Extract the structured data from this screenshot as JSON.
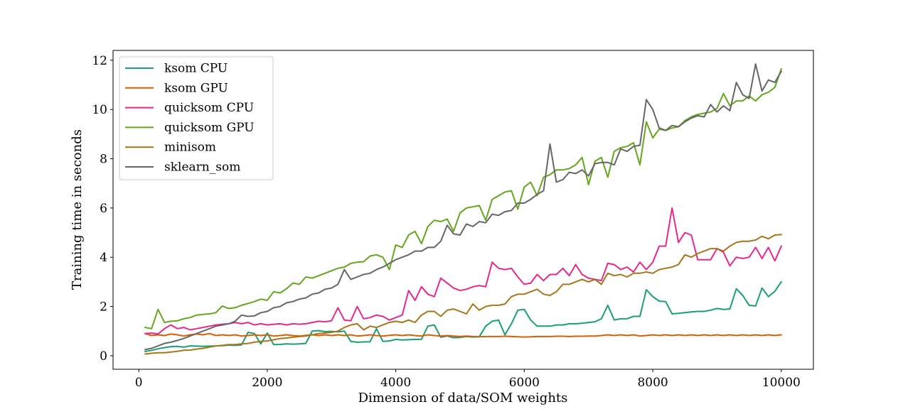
{
  "chart_data": {
    "type": "line",
    "xlabel": "Dimension of data/SOM weights",
    "ylabel": "Training time in seconds",
    "xlim": [
      -400,
      10500
    ],
    "ylim": [
      -0.55,
      12.4
    ],
    "xticks": [
      0,
      2000,
      4000,
      6000,
      8000,
      10000
    ],
    "xtick_labels": [
      "0",
      "2000",
      "4000",
      "6000",
      "8000",
      "10000"
    ],
    "yticks": [
      0,
      2,
      4,
      6,
      8,
      10,
      12
    ],
    "ytick_labels": [
      "0",
      "2",
      "4",
      "6",
      "8",
      "10",
      "12"
    ],
    "grid": false,
    "legend_position": "top-left",
    "x": [
      100,
      200,
      300,
      400,
      500,
      600,
      700,
      800,
      900,
      1000,
      1100,
      1200,
      1300,
      1400,
      1500,
      1600,
      1700,
      1800,
      1900,
      2000,
      2100,
      2200,
      2300,
      2400,
      2500,
      2600,
      2700,
      2800,
      2900,
      3000,
      3100,
      3200,
      3300,
      3400,
      3500,
      3600,
      3700,
      3800,
      3900,
      4000,
      4100,
      4200,
      4300,
      4400,
      4500,
      4600,
      4700,
      4800,
      4900,
      5000,
      5100,
      5200,
      5300,
      5400,
      5500,
      5600,
      5700,
      5800,
      5900,
      6000,
      6100,
      6200,
      6300,
      6400,
      6500,
      6600,
      6700,
      6800,
      6900,
      7000,
      7100,
      7200,
      7300,
      7400,
      7500,
      7600,
      7700,
      7800,
      7900,
      8000,
      8100,
      8200,
      8300,
      8400,
      8500,
      8600,
      8700,
      8800,
      8900,
      9000,
      9100,
      9200,
      9300,
      9400,
      9500,
      9600,
      9700,
      9800,
      9900,
      10000
    ],
    "series": [
      {
        "name": "ksom CPU",
        "color": "#1b9e77",
        "values": [
          0.17,
          0.22,
          0.28,
          0.33,
          0.37,
          0.38,
          0.35,
          0.4,
          0.39,
          0.38,
          0.39,
          0.4,
          0.41,
          0.43,
          0.42,
          0.44,
          0.95,
          0.9,
          0.48,
          0.92,
          0.45,
          0.46,
          0.48,
          0.47,
          0.48,
          0.5,
          1.0,
          1.02,
          0.98,
          0.99,
          0.97,
          1.0,
          0.58,
          0.55,
          0.56,
          0.57,
          1.1,
          0.58,
          0.6,
          0.66,
          0.64,
          0.65,
          0.66,
          0.67,
          1.2,
          1.25,
          0.75,
          0.8,
          0.73,
          0.74,
          0.78,
          0.76,
          0.77,
          1.2,
          1.4,
          1.45,
          0.85,
          1.3,
          1.85,
          1.88,
          1.45,
          1.2,
          1.2,
          1.2,
          1.25,
          1.25,
          1.3,
          1.3,
          1.32,
          1.35,
          1.38,
          1.5,
          2.05,
          1.45,
          1.5,
          1.5,
          1.6,
          1.6,
          2.68,
          2.4,
          2.22,
          2.2,
          1.7,
          1.72,
          1.75,
          1.78,
          1.8,
          1.8,
          1.85,
          1.92,
          1.88,
          1.9,
          2.72,
          2.45,
          2.05,
          2.02,
          2.75,
          2.4,
          2.62,
          3.0
        ]
      },
      {
        "name": "ksom GPU",
        "color": "#d95f02",
        "values": [
          0.9,
          0.82,
          0.85,
          0.82,
          0.88,
          0.85,
          0.8,
          0.85,
          0.88,
          0.85,
          0.9,
          0.82,
          0.85,
          0.82,
          0.85,
          0.8,
          0.82,
          0.85,
          0.82,
          0.85,
          0.8,
          0.82,
          0.85,
          0.82,
          0.8,
          0.83,
          0.85,
          0.82,
          0.85,
          0.82,
          0.85,
          0.82,
          0.85,
          0.8,
          0.82,
          0.85,
          0.82,
          0.8,
          0.83,
          0.85,
          0.82,
          0.85,
          0.82,
          0.8,
          0.85,
          0.82,
          0.8,
          0.82,
          0.8,
          0.78,
          0.8,
          0.78,
          0.77,
          0.78,
          0.78,
          0.78,
          0.79,
          0.78,
          0.77,
          0.76,
          0.77,
          0.78,
          0.78,
          0.78,
          0.79,
          0.79,
          0.78,
          0.79,
          0.79,
          0.8,
          0.8,
          0.82,
          0.85,
          0.82,
          0.85,
          0.82,
          0.85,
          0.8,
          0.82,
          0.85,
          0.82,
          0.85,
          0.82,
          0.85,
          0.82,
          0.85,
          0.82,
          0.85,
          0.82,
          0.85,
          0.82,
          0.85,
          0.82,
          0.85,
          0.82,
          0.85,
          0.82,
          0.85,
          0.82,
          0.85
        ]
      },
      {
        "name": "quicksom CPU",
        "color": "#e7298a",
        "values": [
          0.9,
          0.92,
          0.88,
          1.1,
          1.25,
          1.1,
          1.15,
          1.05,
          1.1,
          1.15,
          1.2,
          1.25,
          1.28,
          1.3,
          1.35,
          1.3,
          1.35,
          1.25,
          1.3,
          1.25,
          1.28,
          1.3,
          1.25,
          1.3,
          1.28,
          1.3,
          1.35,
          1.4,
          1.38,
          1.42,
          1.95,
          1.45,
          1.42,
          2.0,
          1.5,
          1.55,
          1.65,
          1.6,
          1.45,
          1.55,
          1.65,
          2.65,
          2.25,
          2.8,
          2.5,
          2.4,
          3.15,
          2.95,
          2.75,
          2.65,
          2.7,
          2.8,
          2.85,
          2.8,
          3.8,
          3.55,
          3.5,
          3.55,
          3.2,
          2.9,
          2.95,
          3.3,
          3.05,
          3.3,
          3.3,
          3.55,
          3.25,
          3.7,
          3.3,
          3.15,
          3.1,
          3.05,
          3.75,
          3.7,
          3.5,
          3.6,
          3.4,
          3.8,
          3.5,
          3.8,
          4.45,
          4.45,
          6.0,
          4.6,
          5.0,
          4.9,
          3.9,
          3.9,
          3.9,
          4.35,
          4.2,
          3.65,
          4.0,
          3.95,
          4.0,
          4.4,
          3.95,
          4.4,
          3.85,
          4.45
        ]
      },
      {
        "name": "quicksom GPU",
        "color": "#66a61e",
        "values": [
          1.15,
          1.1,
          1.88,
          1.35,
          1.4,
          1.42,
          1.5,
          1.55,
          1.65,
          1.68,
          1.7,
          1.75,
          2.02,
          1.92,
          1.95,
          2.05,
          2.12,
          2.2,
          2.3,
          2.25,
          2.6,
          2.55,
          2.72,
          2.95,
          2.9,
          3.2,
          3.15,
          3.25,
          3.35,
          3.45,
          3.55,
          3.6,
          3.75,
          3.8,
          3.82,
          4.05,
          4.1,
          4.0,
          3.5,
          4.5,
          4.4,
          4.9,
          5.05,
          4.55,
          5.25,
          5.5,
          5.45,
          5.55,
          5.05,
          5.8,
          6.0,
          6.05,
          6.1,
          5.5,
          6.35,
          6.5,
          6.65,
          6.7,
          5.95,
          6.85,
          7.05,
          6.5,
          7.25,
          7.35,
          7.55,
          7.55,
          7.6,
          7.75,
          8.05,
          6.95,
          7.9,
          8.05,
          7.25,
          8.3,
          8.45,
          8.5,
          8.65,
          7.75,
          9.5,
          8.85,
          9.2,
          9.15,
          9.25,
          9.3,
          9.55,
          9.7,
          9.8,
          9.85,
          9.9,
          10.05,
          10.65,
          10.15,
          10.35,
          10.35,
          10.55,
          10.35,
          10.6,
          10.7,
          10.9,
          11.65
        ]
      },
      {
        "name": "minisom",
        "color": "#a6761d",
        "values": [
          0.07,
          0.1,
          0.12,
          0.12,
          0.15,
          0.18,
          0.22,
          0.23,
          0.27,
          0.3,
          0.35,
          0.4,
          0.42,
          0.45,
          0.45,
          0.48,
          0.5,
          0.55,
          0.58,
          0.6,
          0.65,
          0.7,
          0.72,
          0.75,
          0.78,
          0.8,
          0.85,
          0.9,
          0.92,
          0.95,
          1.0,
          1.15,
          1.25,
          1.3,
          1.05,
          1.2,
          1.15,
          1.25,
          1.35,
          1.4,
          1.35,
          1.45,
          1.35,
          1.65,
          1.8,
          1.8,
          1.6,
          1.85,
          1.9,
          1.8,
          1.7,
          2.1,
          1.85,
          2.0,
          2.05,
          2.05,
          2.1,
          2.4,
          2.5,
          2.5,
          2.6,
          2.7,
          2.5,
          2.45,
          2.6,
          2.9,
          2.9,
          3.0,
          3.1,
          3.0,
          3.1,
          2.9,
          3.35,
          3.25,
          3.3,
          3.2,
          3.35,
          3.35,
          3.4,
          3.35,
          3.5,
          3.55,
          3.6,
          3.7,
          4.1,
          4.0,
          4.15,
          4.25,
          4.35,
          4.35,
          4.25,
          4.45,
          4.6,
          4.65,
          4.65,
          4.7,
          4.85,
          4.75,
          4.9,
          4.92
        ]
      },
      {
        "name": "sklearn_som",
        "color": "#666666",
        "values": [
          0.25,
          0.3,
          0.4,
          0.5,
          0.55,
          0.62,
          0.7,
          0.8,
          0.9,
          1.0,
          1.1,
          1.2,
          1.25,
          1.3,
          1.4,
          1.65,
          1.6,
          1.62,
          1.75,
          1.8,
          1.95,
          2.0,
          2.15,
          2.2,
          2.3,
          2.35,
          2.5,
          2.55,
          2.7,
          2.75,
          2.9,
          3.5,
          3.1,
          3.2,
          3.3,
          3.35,
          3.5,
          3.6,
          3.75,
          3.9,
          4.0,
          4.1,
          4.25,
          4.25,
          4.4,
          4.4,
          4.65,
          5.3,
          4.95,
          4.9,
          5.35,
          5.25,
          5.45,
          5.4,
          5.75,
          5.7,
          5.85,
          5.9,
          6.2,
          6.2,
          6.35,
          6.55,
          6.7,
          8.6,
          7.05,
          7.15,
          7.45,
          7.4,
          7.55,
          7.3,
          7.8,
          7.85,
          7.85,
          7.75,
          8.4,
          8.3,
          8.5,
          8.55,
          10.4,
          10.0,
          9.25,
          9.15,
          9.35,
          9.3,
          9.5,
          9.65,
          9.75,
          9.7,
          10.2,
          9.9,
          10.15,
          9.95,
          11.1,
          10.6,
          10.45,
          11.85,
          10.75,
          11.2,
          11.1,
          11.55
        ]
      }
    ]
  }
}
